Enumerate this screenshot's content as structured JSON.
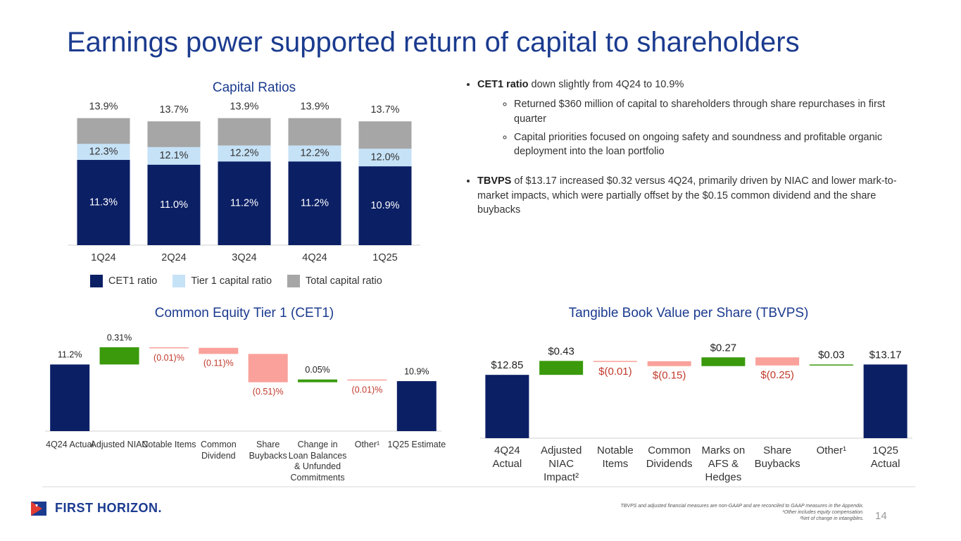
{
  "title": "Earnings power supported return of capital to shareholders",
  "bullets": [
    {
      "lead": "CET1 ratio",
      "text": "down slightly from 4Q24 to 10.9%",
      "sub": [
        "Returned $360 million of capital to shareholders through share repurchases in first quarter",
        "Capital priorities focused on ongoing safety and soundness and profitable organic deployment into the loan portfolio"
      ]
    },
    {
      "lead": "TBVPS",
      "text": "of $13.17 increased $0.32 versus 4Q24, primarily driven by NIAC and lower mark-to-market impacts, which were partially offset by the $0.15 common dividend and the share buybacks"
    }
  ],
  "logo": "FIRST HORIZON.",
  "footnotes": [
    "TBVPS and adjusted financial measures are non-GAAP and are reconciled to GAAP measures in the Appendix.",
    "¹Other includes equity compensation.",
    "²Net of change in intangibles."
  ],
  "page_number": "14",
  "chart_data": [
    {
      "type": "bar",
      "bar_mode": "overlay",
      "title": "Capital Ratios",
      "categories": [
        "1Q24",
        "2Q24",
        "3Q24",
        "4Q24",
        "1Q25"
      ],
      "series": [
        {
          "name": "CET1 ratio",
          "color": "#0b1f65",
          "label_color": "#ffffff",
          "values": [
            11.3,
            11.0,
            11.2,
            11.2,
            10.9
          ],
          "value_labels": [
            "11.3%",
            "11.0%",
            "11.2%",
            "11.2%",
            "10.9%"
          ]
        },
        {
          "name": "Tier 1 capital ratio",
          "color": "#c6e2f7",
          "label_color": "#333333",
          "values": [
            12.3,
            12.1,
            12.2,
            12.2,
            12.0
          ],
          "value_labels": [
            "12.3%",
            "12.1%",
            "12.2%",
            "12.2%",
            "12.0%"
          ]
        },
        {
          "name": "Total capital ratio",
          "color": "#a6a6a6",
          "label_color": "#333333",
          "values": [
            13.9,
            13.7,
            13.9,
            13.9,
            13.7
          ],
          "value_labels": [
            "13.9%",
            "13.7%",
            "13.9%",
            "13.9%",
            "13.7%"
          ]
        }
      ],
      "ylim": [
        6,
        14.5
      ],
      "legend": "bottom"
    },
    {
      "type": "waterfall",
      "title": "Common Equity Tier 1 (CET1)",
      "categories": [
        "4Q24 Actual",
        "Adjusted NIAC",
        "Notable Items",
        "Common Dividend",
        "Share Buybacks",
        "Change in Loan Balances & Unfunded Commitments",
        "Other¹",
        "1Q25 Estimate"
      ],
      "measure": [
        "absolute",
        "relative",
        "relative",
        "relative",
        "relative",
        "relative",
        "relative",
        "total"
      ],
      "values": [
        11.2,
        0.31,
        -0.01,
        -0.11,
        -0.51,
        0.05,
        -0.01,
        10.9
      ],
      "value_labels": [
        "11.2%",
        "0.31%",
        "(0.01)%",
        "(0.11)%",
        "(0.51)%",
        "0.05%",
        "(0.01)%",
        "10.9%"
      ],
      "total_color": "#0b1f65",
      "increase_color": "#3a9a0c",
      "decrease_color": "#f9a19a",
      "label_color": "#1f1f1f",
      "negative_label_color": "#c0392b",
      "ylim": [
        10,
        11.7
      ]
    },
    {
      "type": "waterfall",
      "title": "Tangible Book Value per Share (TBVPS)",
      "categories": [
        "4Q24 Actual",
        "Adjusted NIAC Impact²",
        "Notable Items",
        "Common Dividends",
        "Marks on AFS & Hedges",
        "Share Buybacks",
        "Other¹",
        "1Q25 Actual"
      ],
      "measure": [
        "absolute",
        "relative",
        "relative",
        "relative",
        "relative",
        "relative",
        "relative",
        "total"
      ],
      "values": [
        12.85,
        0.43,
        -0.01,
        -0.15,
        0.27,
        -0.25,
        0.03,
        13.17
      ],
      "value_labels": [
        "$12.85",
        "$0.43",
        "$(0.01)",
        "$(0.15)",
        "$0.27",
        "$(0.25)",
        "$0.03",
        "$13.17"
      ],
      "total_color": "#0b1f65",
      "increase_color": "#3a9a0c",
      "decrease_color": "#f9a19a",
      "label_color": "#1f1f1f",
      "negative_label_color": "#c0392b",
      "ylim": [
        10.9,
        13.7
      ]
    }
  ]
}
